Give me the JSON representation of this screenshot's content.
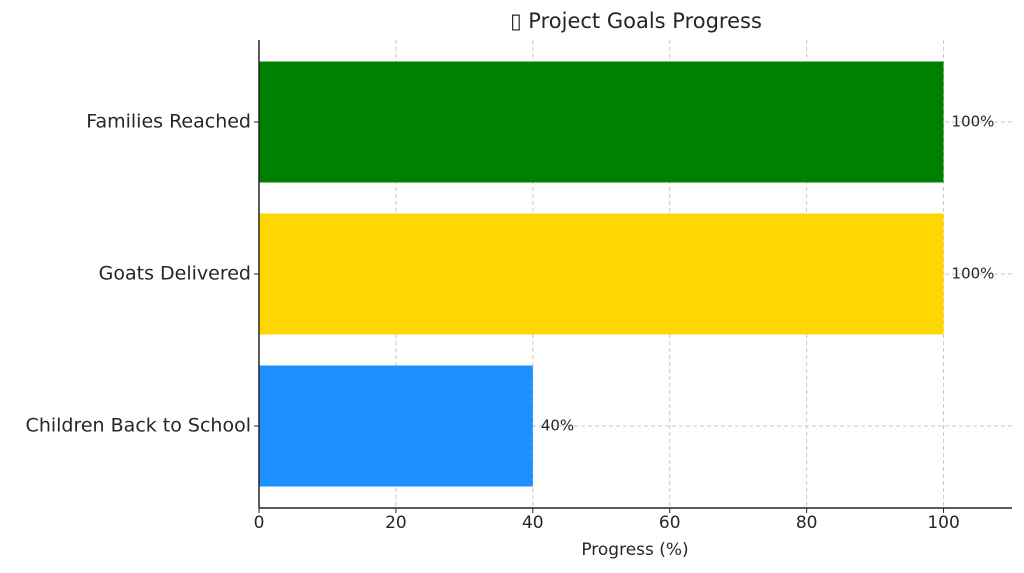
{
  "chart_data": {
    "type": "barh",
    "title": "▯ Project Goals Progress",
    "xlabel": "Progress (%)",
    "categories": [
      "Families Reached",
      "Goats Delivered",
      "Children Back to School"
    ],
    "values": [
      100,
      100,
      40
    ],
    "value_labels": [
      "100%",
      "100%",
      "40%"
    ],
    "colors": [
      "#008000",
      "#ffd700",
      "#1e90ff"
    ],
    "xlim": [
      0,
      110
    ],
    "xticks": [
      0,
      20,
      40,
      60,
      80,
      100
    ],
    "grid": true
  }
}
